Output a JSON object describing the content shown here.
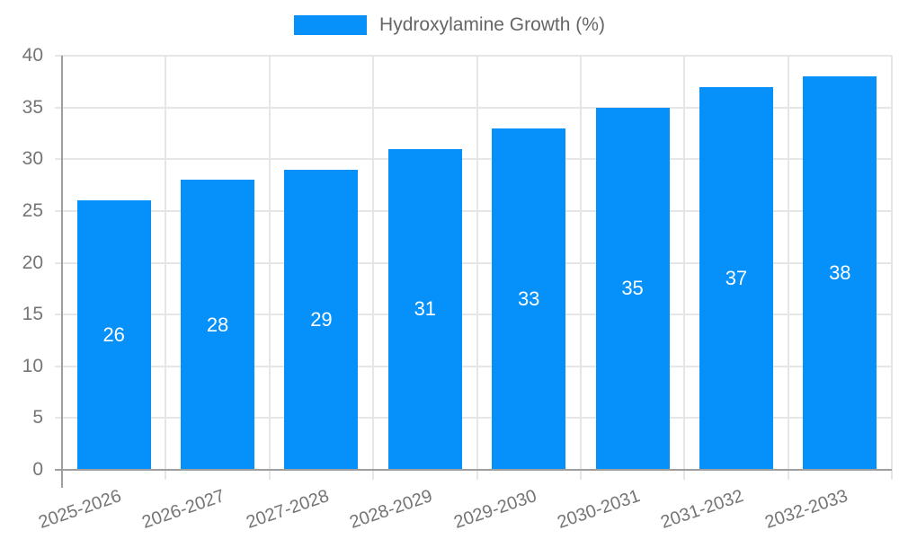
{
  "chart_data": {
    "type": "bar",
    "title": "",
    "legend": "Hydroxylamine Growth (%)",
    "legend_position": "top",
    "categories": [
      "2025-2026",
      "2026-2027",
      "2027-2028",
      "2028-2029",
      "2029-2030",
      "2030-2031",
      "2031-2032",
      "2032-2033"
    ],
    "values": [
      26,
      28,
      29,
      31,
      33,
      35,
      37,
      38
    ],
    "value_labels_shown": true,
    "xlabel": "",
    "ylabel": "",
    "ylim": [
      0,
      40
    ],
    "yticks": [
      0,
      5,
      10,
      15,
      20,
      25,
      30,
      35,
      40
    ],
    "grid": "on",
    "colors": {
      "bar": "#0590fa",
      "grid_line": "#e6e6e6",
      "axis_line": "#9e9e9e",
      "tick_text": "#757575",
      "legend_text": "#666666",
      "value_label_text": "#ffffff",
      "background": "#ffffff"
    }
  }
}
